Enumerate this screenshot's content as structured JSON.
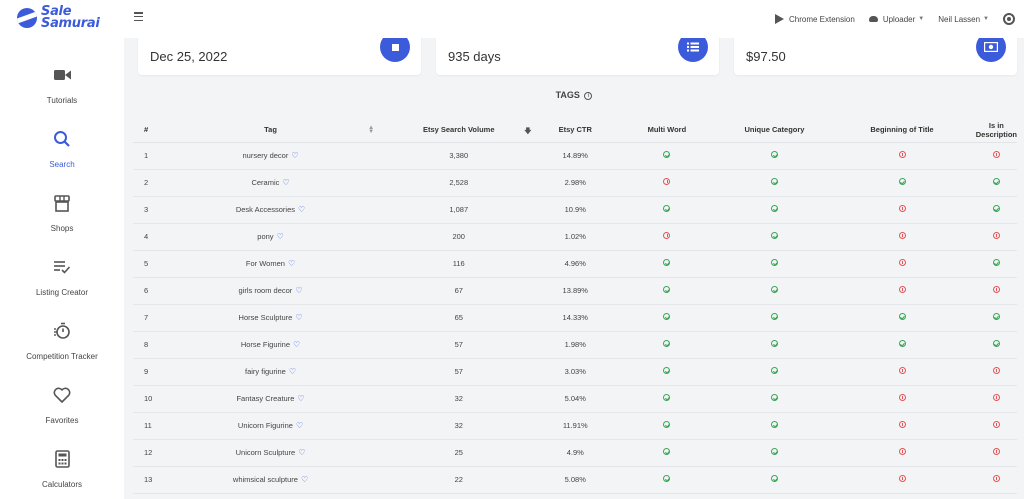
{
  "app": {
    "logo_line1": "Sale",
    "logo_line2": "Samurai",
    "accent_color": "#3b5bdb"
  },
  "topbar": {
    "chrome_extension": "Chrome Extension",
    "uploader": "Uploader",
    "user": "Neil Lassen"
  },
  "sidebar": {
    "items": [
      {
        "label": "Tutorials",
        "icon": "video-camera-icon"
      },
      {
        "label": "Search",
        "icon": "search-icon",
        "active": true
      },
      {
        "label": "Shops",
        "icon": "store-icon"
      },
      {
        "label": "Listing Creator",
        "icon": "list-check-icon"
      },
      {
        "label": "Competition Tracker",
        "icon": "stopwatch-icon"
      },
      {
        "label": "Favorites",
        "icon": "heart-icon"
      },
      {
        "label": "Calculators",
        "icon": "calculator-icon"
      }
    ]
  },
  "cards": [
    {
      "value": "Dec 25, 2022",
      "icon": "calendar-icon"
    },
    {
      "value": "935 days",
      "icon": "list-icon"
    },
    {
      "value": "$97.50",
      "icon": "money-icon"
    }
  ],
  "tags": {
    "title": "TAGS",
    "columns": [
      "#",
      "Tag",
      "Etsy Search Volume",
      "Etsy CTR",
      "Multi Word",
      "Unique Category",
      "Beginning of Title",
      "Is in Description"
    ],
    "rows": [
      {
        "n": "1",
        "tag": "nursery decor",
        "volume": "3,380",
        "ctr": "14.89%",
        "multi": true,
        "unique": true,
        "beginning": false,
        "desc": false
      },
      {
        "n": "2",
        "tag": "Ceramic",
        "volume": "2,528",
        "ctr": "2.98%",
        "multi": false,
        "unique": true,
        "beginning": true,
        "desc": true
      },
      {
        "n": "3",
        "tag": "Desk Accessories",
        "volume": "1,087",
        "ctr": "10.9%",
        "multi": true,
        "unique": true,
        "beginning": false,
        "desc": true
      },
      {
        "n": "4",
        "tag": "pony",
        "volume": "200",
        "ctr": "1.02%",
        "multi": false,
        "unique": true,
        "beginning": false,
        "desc": false
      },
      {
        "n": "5",
        "tag": "For Women",
        "volume": "116",
        "ctr": "4.96%",
        "multi": true,
        "unique": true,
        "beginning": false,
        "desc": true
      },
      {
        "n": "6",
        "tag": "girls room decor",
        "volume": "67",
        "ctr": "13.89%",
        "multi": true,
        "unique": true,
        "beginning": false,
        "desc": false
      },
      {
        "n": "7",
        "tag": "Horse Sculpture",
        "volume": "65",
        "ctr": "14.33%",
        "multi": true,
        "unique": true,
        "beginning": true,
        "desc": true
      },
      {
        "n": "8",
        "tag": "Horse Figurine",
        "volume": "57",
        "ctr": "1.98%",
        "multi": true,
        "unique": true,
        "beginning": true,
        "desc": true
      },
      {
        "n": "9",
        "tag": "fairy figurine",
        "volume": "57",
        "ctr": "3.03%",
        "multi": true,
        "unique": true,
        "beginning": false,
        "desc": false
      },
      {
        "n": "10",
        "tag": "Fantasy Creature",
        "volume": "32",
        "ctr": "5.04%",
        "multi": true,
        "unique": true,
        "beginning": false,
        "desc": false
      },
      {
        "n": "11",
        "tag": "Unicorn Figurine",
        "volume": "32",
        "ctr": "11.91%",
        "multi": true,
        "unique": true,
        "beginning": false,
        "desc": false
      },
      {
        "n": "12",
        "tag": "Unicorn Sculpture",
        "volume": "25",
        "ctr": "4.9%",
        "multi": true,
        "unique": true,
        "beginning": false,
        "desc": false
      },
      {
        "n": "13",
        "tag": "whimsical sculpture",
        "volume": "22",
        "ctr": "5.08%",
        "multi": true,
        "unique": true,
        "beginning": false,
        "desc": false
      }
    ]
  }
}
